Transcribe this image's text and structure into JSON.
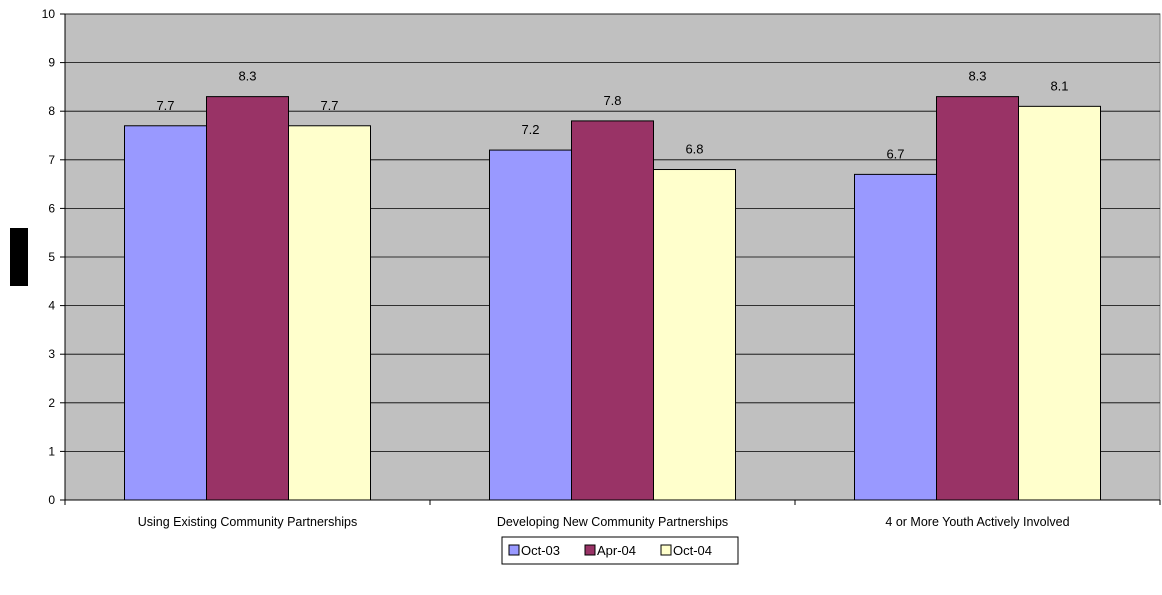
{
  "chart_data": {
    "type": "bar",
    "title": "",
    "xlabel": "",
    "ylabel": "",
    "ylim": [
      0,
      10
    ],
    "yticks": [
      0,
      1,
      2,
      3,
      4,
      5,
      6,
      7,
      8,
      9,
      10
    ],
    "categories": [
      "Using Existing Community Partnerships",
      "Developing New Community Partnerships",
      "4 or More Youth Actively Involved"
    ],
    "series": [
      {
        "name": "Oct-03",
        "color": "#9999ff",
        "values": [
          7.7,
          7.2,
          6.7
        ]
      },
      {
        "name": "Apr-04",
        "color": "#993366",
        "values": [
          8.3,
          7.8,
          8.3
        ]
      },
      {
        "name": "Oct-04",
        "color": "#ffffcc",
        "values": [
          7.7,
          6.8,
          8.1
        ]
      }
    ],
    "plot_background": "#c0c0c0",
    "grid": true,
    "legend_position": "bottom"
  }
}
